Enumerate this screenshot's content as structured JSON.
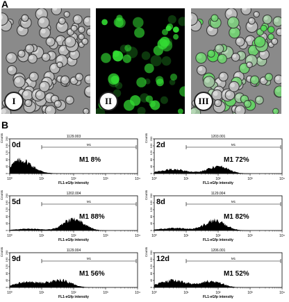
{
  "figure": {
    "panel_a_letter": "A",
    "panel_b_letter": "B",
    "micro_labels": [
      "I",
      "II",
      "III"
    ]
  },
  "chart_data": [
    {
      "type": "area",
      "day": "0d",
      "gate": "M1",
      "percent": "8%",
      "counts": "1129.003",
      "xlabel": "FL1-eGfp intensity",
      "ylabel": "Counts",
      "x_scale": "log",
      "xlim": [
        1,
        10000
      ],
      "x_ticks": [
        "10⁰",
        "10¹",
        "10²",
        "10³",
        "10⁴"
      ],
      "y_ticks": [
        "0",
        "40",
        "80",
        "120",
        "160",
        "200"
      ],
      "gate_range": [
        10,
        10000
      ],
      "peak_log": 0.35,
      "peak_height": 0.35,
      "tail": 0.04
    },
    {
      "type": "area",
      "day": "2d",
      "gate": "M1",
      "percent": "72%",
      "counts": "1203.001",
      "xlabel": "FL1-eGfp intensity",
      "ylabel": "Counts",
      "x_scale": "log",
      "xlim": [
        1,
        10000
      ],
      "x_ticks": [
        "10⁰",
        "10¹",
        "10²",
        "10³",
        "10⁴"
      ],
      "y_ticks": [
        "0",
        "40",
        "80",
        "120",
        "160",
        "200"
      ],
      "gate_range": [
        10,
        10000
      ],
      "peak_log": 2.0,
      "peak_height": 0.2,
      "tail": 0.12
    },
    {
      "type": "area",
      "day": "5d",
      "gate": "M1",
      "percent": "88%",
      "counts": "1202.004",
      "xlabel": "FL1-eGfp intensity",
      "ylabel": "Counts",
      "x_scale": "log",
      "xlim": [
        1,
        10000
      ],
      "x_ticks": [
        "10⁰",
        "10¹",
        "10²",
        "10³",
        "10⁴"
      ],
      "y_ticks": [
        "0",
        "40",
        "80",
        "120",
        "160",
        "200"
      ],
      "gate_range": [
        10,
        10000
      ],
      "peak_log": 2.0,
      "peak_height": 0.33,
      "tail": 0.05
    },
    {
      "type": "area",
      "day": "8d",
      "gate": "M1",
      "percent": "82%",
      "counts": "1129.004",
      "xlabel": "FL1-eGfp intensity",
      "ylabel": "Counts",
      "x_scale": "log",
      "xlim": [
        1,
        10000
      ],
      "x_ticks": [
        "10⁰",
        "10¹",
        "10²",
        "10³",
        "10⁴"
      ],
      "y_ticks": [
        "0",
        "40",
        "80",
        "120",
        "160",
        "200"
      ],
      "gate_range": [
        10,
        10000
      ],
      "peak_log": 1.9,
      "peak_height": 0.28,
      "tail": 0.07
    },
    {
      "type": "area",
      "day": "9d",
      "gate": "M1",
      "percent": "56%",
      "counts": "1129.004",
      "xlabel": "FL1-eGfp intensity",
      "ylabel": "Counts",
      "x_scale": "log",
      "xlim": [
        1,
        10000
      ],
      "x_ticks": [
        "10⁰",
        "10¹",
        "10²",
        "10³",
        "10⁴"
      ],
      "y_ticks": [
        "0",
        "40",
        "80",
        "120",
        "160",
        "200"
      ],
      "gate_range": [
        10,
        10000
      ],
      "peak_log": 1.6,
      "peak_height": 0.2,
      "tail": 0.16
    },
    {
      "type": "area",
      "day": "12d",
      "gate": "M1",
      "percent": "52%",
      "counts": "1206.001",
      "xlabel": "FL1-eGfp intensity",
      "ylabel": "Counts",
      "x_scale": "log",
      "xlim": [
        1,
        10000
      ],
      "x_ticks": [
        "10⁰",
        "10¹",
        "10²",
        "10³",
        "10⁴"
      ],
      "y_ticks": [
        "0",
        "40",
        "80",
        "120",
        "160",
        "200"
      ],
      "gate_range": [
        10,
        10000
      ],
      "peak_log": 1.8,
      "peak_height": 0.18,
      "tail": 0.2
    }
  ],
  "colors": {
    "gfp": "#33dd33",
    "dic_bg": "#8a8a8a",
    "dark_bg": "#000000"
  }
}
